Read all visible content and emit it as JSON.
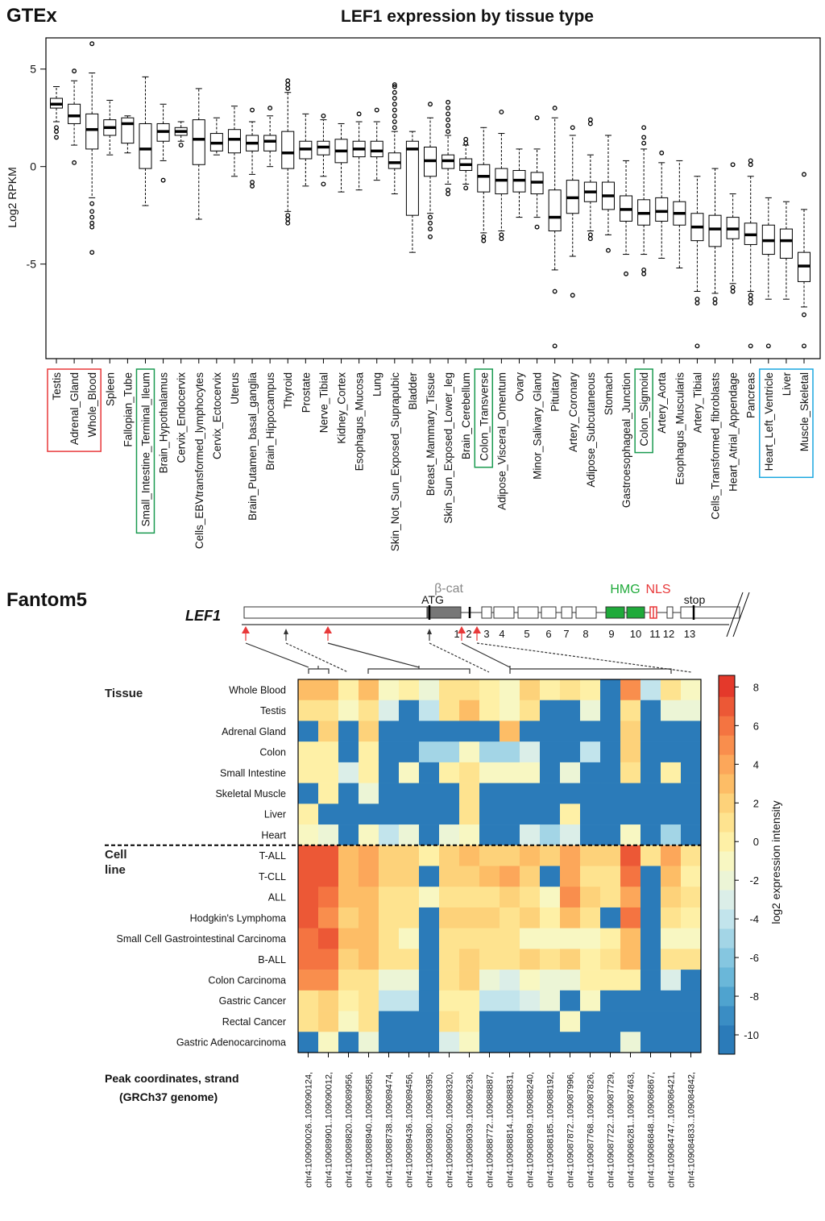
{
  "chart_data": [
    {
      "type": "box",
      "panel": "GTEx",
      "title": "LEF1 expression by tissue type",
      "ylabel": "Log2 RPKM",
      "ylim": [
        -9.85,
        6.6
      ],
      "yticks": [
        -5,
        0,
        5
      ],
      "categories": [
        "Testis",
        "Adrenal_Gland",
        "Whole_Blood",
        "Spleen",
        "Fallopian_Tube",
        "Small_Intestine_Terminal_Ileum",
        "Brain_Hypothalamus",
        "Cervix_Endocervix",
        "Cells_EBVtransformed_lymphocytes",
        "Cervix_Ectocervix",
        "Uterus",
        "Brain_Putamen_basal_ganglia",
        "Brain_Hippocampus",
        "Thyroid",
        "Prostate",
        "Nerve_Tibial",
        "Kidney_Cortex",
        "Esophagus_Mucosa",
        "Lung",
        "Skin_Not_Sun_Exposed_Suprapubic",
        "Bladder",
        "Breast_Mammary_Tissue",
        "Skin_Sun_Exposed_Lower_leg",
        "Brain_Cerebellum",
        "Colon_Transverse",
        "Adipose_Visceral_Omentum",
        "Ovary",
        "Minor_Salivary_Gland",
        "Pituitary",
        "Artery_Coronary",
        "Adipose_Subcutaneous",
        "Stomach",
        "Gastroesophageal_Junction",
        "Colon_Sigmoid",
        "Artery_Aorta",
        "Esophagus_Muscularis",
        "Artery_Tibial",
        "Cells_Transformed_fibroblasts",
        "Heart_Atrial_Appendage",
        "Pancreas",
        "Heart_Left_Ventricle",
        "Liver",
        "Muscle_Skeletal"
      ],
      "boxes": [
        {
          "whislo": 2.3,
          "q1": 3.0,
          "med": 3.2,
          "q3": 3.5,
          "whishi": 4.1,
          "fliers": [
            2.0,
            1.8,
            1.5
          ]
        },
        {
          "whislo": 1.1,
          "q1": 2.2,
          "med": 2.6,
          "q3": 3.2,
          "whishi": 4.4,
          "fliers": [
            4.9,
            0.2
          ]
        },
        {
          "whislo": -1.6,
          "q1": 0.9,
          "med": 1.9,
          "q3": 2.7,
          "whishi": 4.8,
          "fliers": [
            6.3,
            -1.9,
            -2.3,
            -2.6,
            -2.9,
            -3.1,
            -4.4
          ]
        },
        {
          "whislo": 0.6,
          "q1": 1.6,
          "med": 2.0,
          "q3": 2.4,
          "whishi": 3.4,
          "fliers": []
        },
        {
          "whislo": 0.7,
          "q1": 1.2,
          "med": 2.2,
          "q3": 2.5,
          "whishi": 2.6,
          "fliers": []
        },
        {
          "whislo": -2.0,
          "q1": -0.1,
          "med": 0.9,
          "q3": 2.2,
          "whishi": 4.6,
          "fliers": []
        },
        {
          "whislo": 0.3,
          "q1": 1.3,
          "med": 1.8,
          "q3": 2.2,
          "whishi": 3.2,
          "fliers": [
            -0.7
          ]
        },
        {
          "whislo": 1.3,
          "q1": 1.6,
          "med": 1.8,
          "q3": 2.0,
          "whishi": 2.3,
          "fliers": [
            1.1
          ]
        },
        {
          "whislo": -2.7,
          "q1": 0.1,
          "med": 1.4,
          "q3": 2.4,
          "whishi": 4.0,
          "fliers": []
        },
        {
          "whislo": 0.6,
          "q1": 0.8,
          "med": 1.2,
          "q3": 1.7,
          "whishi": 2.5,
          "fliers": []
        },
        {
          "whislo": -0.5,
          "q1": 0.7,
          "med": 1.4,
          "q3": 1.9,
          "whishi": 3.1,
          "fliers": []
        },
        {
          "whislo": -0.4,
          "q1": 0.8,
          "med": 1.2,
          "q3": 1.6,
          "whishi": 2.3,
          "fliers": [
            2.9,
            -0.8,
            -1.0
          ]
        },
        {
          "whislo": 0.0,
          "q1": 0.8,
          "med": 1.3,
          "q3": 1.6,
          "whishi": 2.6,
          "fliers": [
            3.0
          ]
        },
        {
          "whislo": -2.3,
          "q1": -0.1,
          "med": 0.7,
          "q3": 1.8,
          "whishi": 3.8,
          "fliers": [
            4.4,
            4.2,
            4.0,
            -2.5,
            -2.7,
            -2.9
          ]
        },
        {
          "whislo": -1.0,
          "q1": 0.4,
          "med": 0.9,
          "q3": 1.3,
          "whishi": 2.7,
          "fliers": []
        },
        {
          "whislo": -0.5,
          "q1": 0.6,
          "med": 1.0,
          "q3": 1.3,
          "whishi": 2.4,
          "fliers": [
            2.6,
            -0.9
          ]
        },
        {
          "whislo": -1.3,
          "q1": 0.2,
          "med": 0.8,
          "q3": 1.4,
          "whishi": 2.2,
          "fliers": []
        },
        {
          "whislo": -1.2,
          "q1": 0.5,
          "med": 0.9,
          "q3": 1.3,
          "whishi": 2.3,
          "fliers": [
            2.7
          ]
        },
        {
          "whislo": -0.7,
          "q1": 0.5,
          "med": 0.8,
          "q3": 1.3,
          "whishi": 2.3,
          "fliers": [
            2.9
          ]
        },
        {
          "whislo": -1.4,
          "q1": -0.1,
          "med": 0.2,
          "q3": 0.7,
          "whishi": 1.8,
          "fliers": [
            2.0,
            2.3,
            2.6,
            2.9,
            3.2,
            3.5,
            3.8,
            4.1,
            4.2
          ]
        },
        {
          "whislo": -4.4,
          "q1": -2.5,
          "med": 0.9,
          "q3": 1.3,
          "whishi": 1.8,
          "fliers": []
        },
        {
          "whislo": -2.4,
          "q1": -0.5,
          "med": 0.3,
          "q3": 1.0,
          "whishi": 2.5,
          "fliers": [
            3.2,
            -2.6,
            -2.9,
            -3.2,
            -3.6
          ]
        },
        {
          "whislo": -0.9,
          "q1": -0.1,
          "med": 0.3,
          "q3": 0.6,
          "whishi": 1.6,
          "fliers": [
            1.8,
            2.1,
            2.4,
            2.7,
            3.0,
            3.3,
            -1.2,
            -1.4
          ]
        },
        {
          "whislo": -0.9,
          "q1": -0.2,
          "med": 0.1,
          "q3": 0.4,
          "whishi": 1.1,
          "fliers": [
            1.4,
            1.2,
            -1.1
          ]
        },
        {
          "whislo": -3.4,
          "q1": -1.3,
          "med": -0.5,
          "q3": 0.1,
          "whishi": 2.0,
          "fliers": [
            -3.6,
            -3.8
          ]
        },
        {
          "whislo": -3.3,
          "q1": -1.4,
          "med": -0.7,
          "q3": -0.1,
          "whishi": 1.7,
          "fliers": [
            2.8,
            -3.5,
            -3.7
          ]
        },
        {
          "whislo": -2.6,
          "q1": -1.3,
          "med": -0.7,
          "q3": -0.2,
          "whishi": 0.9,
          "fliers": []
        },
        {
          "whislo": -2.6,
          "q1": -1.4,
          "med": -0.8,
          "q3": -0.3,
          "whishi": 0.9,
          "fliers": [
            2.5,
            -3.1
          ]
        },
        {
          "whislo": -5.3,
          "q1": -3.3,
          "med": -2.6,
          "q3": -1.2,
          "whishi": 2.5,
          "fliers": [
            3.0,
            -6.4,
            -9.2
          ]
        },
        {
          "whislo": -4.6,
          "q1": -2.4,
          "med": -1.6,
          "q3": -0.7,
          "whishi": 1.6,
          "fliers": [
            2.0,
            -6.6
          ]
        },
        {
          "whislo": -3.3,
          "q1": -1.8,
          "med": -1.3,
          "q3": -0.8,
          "whishi": 0.6,
          "fliers": [
            2.4,
            2.2,
            -3.5,
            -3.7
          ]
        },
        {
          "whislo": -3.5,
          "q1": -2.2,
          "med": -1.5,
          "q3": -0.8,
          "whishi": 1.6,
          "fliers": [
            -4.3
          ]
        },
        {
          "whislo": -4.5,
          "q1": -2.8,
          "med": -2.2,
          "q3": -1.5,
          "whishi": 0.3,
          "fliers": [
            -5.5
          ]
        },
        {
          "whislo": -4.5,
          "q1": -3.0,
          "med": -2.4,
          "q3": -1.7,
          "whishi": 0.9,
          "fliers": [
            2.0,
            1.5,
            1.2,
            -5.3,
            -5.5
          ]
        },
        {
          "whislo": -4.7,
          "q1": -2.8,
          "med": -2.3,
          "q3": -1.6,
          "whishi": 0.2,
          "fliers": [
            0.7
          ]
        },
        {
          "whislo": -5.2,
          "q1": -3.0,
          "med": -2.4,
          "q3": -1.8,
          "whishi": 0.3,
          "fliers": []
        },
        {
          "whislo": -6.4,
          "q1": -3.8,
          "med": -3.1,
          "q3": -2.4,
          "whishi": -0.5,
          "fliers": [
            -6.8,
            -7.0,
            -9.2
          ]
        },
        {
          "whislo": -6.5,
          "q1": -4.1,
          "med": -3.2,
          "q3": -2.5,
          "whishi": -0.1,
          "fliers": [
            -6.8,
            -7.0
          ]
        },
        {
          "whislo": -6.0,
          "q1": -3.7,
          "med": -3.2,
          "q3": -2.6,
          "whishi": -1.4,
          "fliers": [
            0.1,
            -6.2,
            -6.4
          ]
        },
        {
          "whislo": -6.4,
          "q1": -4.0,
          "med": -3.5,
          "q3": -2.9,
          "whishi": -0.5,
          "fliers": [
            0.3,
            0.1,
            -6.6,
            -6.8,
            -7.0,
            -9.2
          ]
        },
        {
          "whislo": -6.8,
          "q1": -4.5,
          "med": -3.8,
          "q3": -3.0,
          "whishi": -1.6,
          "fliers": [
            -9.2
          ]
        },
        {
          "whislo": -6.8,
          "q1": -4.7,
          "med": -3.8,
          "q3": -3.2,
          "whishi": -1.8,
          "fliers": []
        },
        {
          "whislo": -7.2,
          "q1": -5.9,
          "med": -5.1,
          "q3": -4.4,
          "whishi": -2.2,
          "fliers": [
            -0.4,
            -7.6,
            -9.2
          ]
        }
      ],
      "highlights": [
        {
          "first": 0,
          "last": 2,
          "color": "#e8393a"
        },
        {
          "first": 5,
          "last": 5,
          "color": "#1a9a50"
        },
        {
          "first": 24,
          "last": 24,
          "color": "#1a9a50"
        },
        {
          "first": 33,
          "last": 33,
          "color": "#1a9a50"
        },
        {
          "first": 40,
          "last": 42,
          "color": "#1aa7e0"
        }
      ]
    },
    {
      "type": "heatmap",
      "panel": "Fantom5",
      "gene": "LEF1",
      "gene_labels": {
        "domain": "β-cat",
        "start": "ATG",
        "hmg": "HMG",
        "nls": "NLS",
        "stop": "stop"
      },
      "exons": [
        "1",
        "2",
        "3",
        "4",
        "5",
        "6",
        "7",
        "8",
        "9",
        "10",
        "11",
        "12",
        "13"
      ],
      "row_groups": [
        {
          "label": "Tissue",
          "rows": [
            "Whole Blood",
            "Testis",
            "Adrenal Gland",
            "Colon",
            "Small Intestine",
            "Skeletal Muscle",
            "Liver",
            "Heart"
          ]
        },
        {
          "label": "Cell line",
          "rows": [
            "T-ALL",
            "T-CLL",
            "ALL",
            "Hodgkin's Lymphoma",
            "Small Cell Gastrointestinal Carcinoma",
            "B-ALL",
            "Colon Carcinoma",
            "Gastric Cancer",
            "Rectal Cancer",
            "Gastric Adenocarcinoma"
          ]
        }
      ],
      "columns": [
        "chr4:109090026..109090124,",
        "chr4:109089901..109090012,",
        "chr4:109089820..109089956,",
        "chr4:109088940..109089585,",
        "chr4:109088738..109089474,",
        "chr4:109089436..109089456,",
        "chr4:109089380..109089395,",
        "chr4:109089050..109089320,",
        "chr4:109089039..109089236,",
        "chr4:109088772..109088887,",
        "chr4:109088814..109088831,",
        "chr4:109088089..109088240,",
        "chr4:109088185..109088192,",
        "chr4:109087872..109087996,",
        "chr4:109087768..109087826,",
        "chr4:109087722..109087729,",
        "chr4:109086281..109087463,",
        "chr4:109086848..109086867,",
        "chr4:109084747..109086421,",
        "chr4:109084833..109084842,"
      ],
      "xlabel": "Peak coordinates, strand",
      "xlabel_note": "(GRCh37 genome)",
      "values": [
        [
          3,
          3,
          0,
          3,
          -1,
          0,
          -2,
          1,
          1,
          0,
          -1,
          2,
          0,
          1,
          0,
          -10,
          5,
          -4,
          1,
          -1
        ],
        [
          1,
          1,
          -1,
          1,
          -3,
          -10,
          -4,
          1,
          3,
          0,
          -1,
          1,
          -10,
          -10,
          -2,
          -10,
          1,
          -10,
          -2,
          -2
        ],
        [
          -10,
          2,
          -10,
          2,
          -10,
          -10,
          -10,
          -10,
          -10,
          -10,
          3,
          -10,
          -10,
          -10,
          -10,
          -10,
          2,
          -10,
          -10,
          -10
        ],
        [
          0,
          0,
          -10,
          0,
          -10,
          -10,
          -5,
          -5,
          -1,
          -5,
          -5,
          -3,
          -10,
          -10,
          -4,
          -10,
          2,
          -10,
          -10,
          -10
        ],
        [
          0,
          0,
          -3,
          0,
          -10,
          -1,
          -10,
          0,
          1,
          -1,
          -1,
          -1,
          -10,
          -2,
          -10,
          -10,
          1,
          -10,
          0,
          -10
        ],
        [
          -10,
          0,
          -10,
          -2,
          -10,
          -10,
          -10,
          -10,
          1,
          -10,
          -10,
          -10,
          -10,
          -10,
          -10,
          -10,
          -10,
          -10,
          -10,
          -10
        ],
        [
          0,
          -10,
          -10,
          -10,
          -10,
          -10,
          -10,
          -10,
          1,
          -10,
          -10,
          -10,
          -10,
          0,
          -10,
          -10,
          -10,
          -10,
          -10,
          -10
        ],
        [
          -1,
          -2,
          -10,
          -1,
          -4,
          -2,
          -10,
          -2,
          -1,
          -10,
          -10,
          -3,
          -5,
          -3,
          -10,
          -10,
          -1,
          -10,
          -5,
          -10
        ],
        [
          7,
          7,
          3,
          4,
          2,
          2,
          0,
          2,
          3,
          2,
          2,
          3,
          2,
          4,
          2,
          2,
          7,
          1,
          4,
          1
        ],
        [
          7,
          7,
          3,
          4,
          2,
          2,
          -10,
          2,
          2,
          3,
          4,
          2,
          -10,
          4,
          1,
          1,
          6,
          -10,
          3,
          0
        ],
        [
          7,
          6,
          3,
          3,
          1,
          1,
          -1,
          1,
          1,
          1,
          2,
          1,
          -1,
          5,
          2,
          1,
          4,
          -10,
          2,
          1
        ],
        [
          7,
          5,
          2,
          3,
          1,
          1,
          -10,
          2,
          2,
          2,
          1,
          2,
          0,
          3,
          1,
          -10,
          6,
          -10,
          1,
          0
        ],
        [
          6,
          7,
          3,
          3,
          1,
          -1,
          -10,
          1,
          1,
          1,
          1,
          -1,
          -1,
          -1,
          -1,
          0,
          3,
          -10,
          -1,
          -1
        ],
        [
          6,
          6,
          2,
          3,
          1,
          1,
          -10,
          1,
          2,
          1,
          1,
          2,
          1,
          2,
          0,
          1,
          3,
          -10,
          1,
          1
        ],
        [
          5,
          5,
          1,
          1,
          -2,
          -2,
          -10,
          1,
          2,
          -2,
          -3,
          -1,
          -2,
          -2,
          0,
          0,
          0,
          -10,
          -3,
          -10
        ],
        [
          1,
          2,
          0,
          1,
          -4,
          -4,
          -10,
          0,
          0,
          -4,
          -4,
          -3,
          -2,
          -10,
          -1,
          -10,
          -10,
          -10,
          -10,
          -10
        ],
        [
          1,
          2,
          -1,
          1,
          -10,
          -10,
          -10,
          1,
          0,
          -10,
          -10,
          -10,
          -10,
          -1,
          -10,
          -10,
          -10,
          -10,
          -10,
          -10
        ],
        [
          -10,
          -1,
          -10,
          -2,
          -10,
          -10,
          -10,
          -3,
          -1,
          -10,
          -10,
          -10,
          -10,
          -10,
          -10,
          -10,
          -2,
          -10,
          -10,
          -10
        ]
      ],
      "zlim": [
        -11,
        8.6
      ],
      "zticks": [
        8,
        6,
        4,
        2,
        0,
        -2,
        -4,
        -6,
        -8,
        -10
      ],
      "colorbar_label": "log2 expression intensity",
      "colormap": [
        {
          "value": -10,
          "color": "#2b7bb9"
        },
        {
          "value": -9,
          "color": "#3a8dc4"
        },
        {
          "value": -8,
          "color": "#4fa3cf"
        },
        {
          "value": -7,
          "color": "#6ab7d9"
        },
        {
          "value": -6,
          "color": "#85c6e0"
        },
        {
          "value": -5,
          "color": "#a3d5e6"
        },
        {
          "value": -4,
          "color": "#c2e4ec"
        },
        {
          "value": -3,
          "color": "#dbeee8"
        },
        {
          "value": -2,
          "color": "#ecf5d6"
        },
        {
          "value": -1,
          "color": "#f8f7c2"
        },
        {
          "value": 0,
          "color": "#fef0a6"
        },
        {
          "value": 1,
          "color": "#fee38f"
        },
        {
          "value": 2,
          "color": "#fdd27a"
        },
        {
          "value": 3,
          "color": "#fdbd66"
        },
        {
          "value": 4,
          "color": "#fca75a"
        },
        {
          "value": 5,
          "color": "#f98e4d"
        },
        {
          "value": 6,
          "color": "#f47441"
        },
        {
          "value": 7,
          "color": "#ec5836"
        },
        {
          "value": 8,
          "color": "#e4392b"
        }
      ]
    }
  ]
}
